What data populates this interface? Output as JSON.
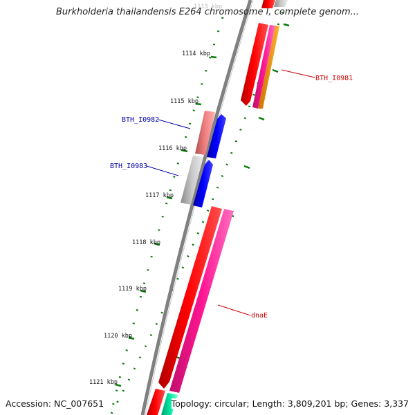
{
  "title": "Burkholderia thailandensis E264 chromosome I, complete genom...",
  "accession": "Accession: NC_007651",
  "topology": "Topology: circular; Length: 3,809,201 bp; Genes: 3,337",
  "ticks": [
    {
      "label": "1113 kbp"
    },
    {
      "label": "1114 kbp"
    },
    {
      "label": "1115 kbp"
    },
    {
      "label": "1116 kbp"
    },
    {
      "label": "1117 kbp"
    },
    {
      "label": "1118 kbp"
    },
    {
      "label": "1119 kbp"
    },
    {
      "label": "1120 kbp"
    },
    {
      "label": "1121 kbp"
    }
  ],
  "gene_labels": [
    {
      "text": "BTH_I0981",
      "color": "#cc0000"
    },
    {
      "text": "BTH_I0982",
      "color": "#0000aa"
    },
    {
      "text": "BTH_I0983",
      "color": "#0000aa"
    },
    {
      "text": "dnaE",
      "color": "#cc0000"
    }
  ],
  "colors": {
    "backbone": "#808080",
    "cds": "#ff0000",
    "pink": "#ff1493",
    "blue": "#0000ff",
    "salmon": "#f08080",
    "gray": "#c8c8c8",
    "orange": "#ffa500",
    "teal": "#00e5a0",
    "tick": "#0a7a0a"
  }
}
